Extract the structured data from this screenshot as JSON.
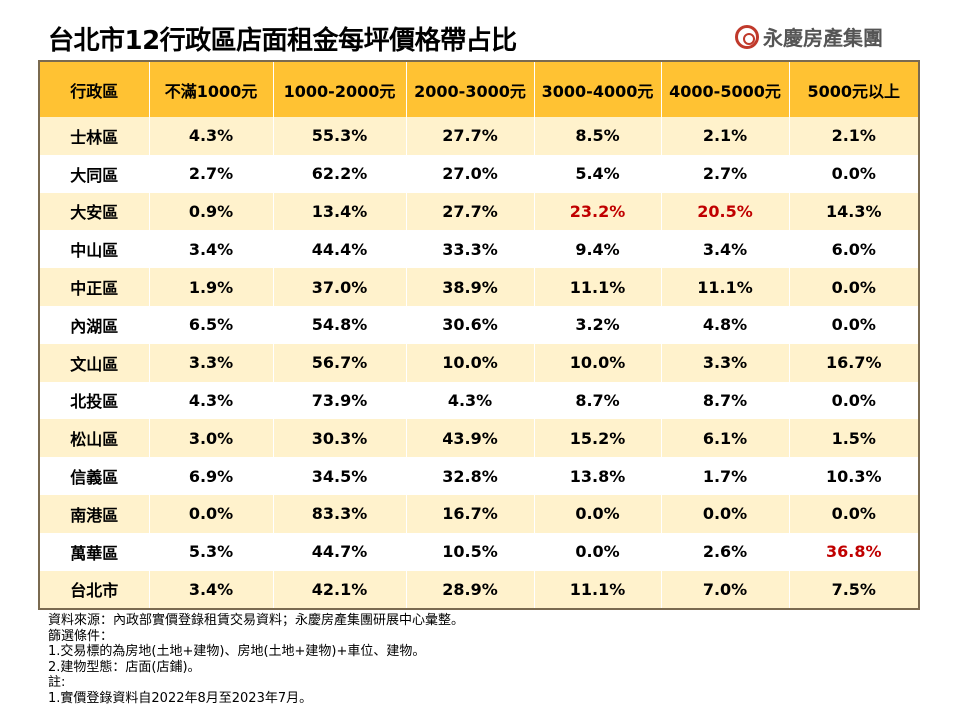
{
  "title": "台北市12行政區店面租金每坪價格帶占比",
  "logo": {
    "text": "永慶房產集團",
    "color": "#c0392b"
  },
  "table": {
    "headers": [
      "行政區",
      "不滿1000元",
      "1000-2000元",
      "2000-3000元",
      "3000-4000元",
      "4000-5000元",
      "5000元以上"
    ],
    "header_color": "#ffc233",
    "stripe_color": "#fff2cc",
    "highlight_color": "#c00000",
    "rows": [
      {
        "district": "士林區",
        "values": [
          "4.3%",
          "55.3%",
          "27.7%",
          "8.5%",
          "2.1%",
          "2.1%"
        ],
        "highlight": []
      },
      {
        "district": "大同區",
        "values": [
          "2.7%",
          "62.2%",
          "27.0%",
          "5.4%",
          "2.7%",
          "0.0%"
        ],
        "highlight": []
      },
      {
        "district": "大安區",
        "values": [
          "0.9%",
          "13.4%",
          "27.7%",
          "23.2%",
          "20.5%",
          "14.3%"
        ],
        "highlight": [
          3,
          4
        ]
      },
      {
        "district": "中山區",
        "values": [
          "3.4%",
          "44.4%",
          "33.3%",
          "9.4%",
          "3.4%",
          "6.0%"
        ],
        "highlight": []
      },
      {
        "district": "中正區",
        "values": [
          "1.9%",
          "37.0%",
          "38.9%",
          "11.1%",
          "11.1%",
          "0.0%"
        ],
        "highlight": []
      },
      {
        "district": "內湖區",
        "values": [
          "6.5%",
          "54.8%",
          "30.6%",
          "3.2%",
          "4.8%",
          "0.0%"
        ],
        "highlight": []
      },
      {
        "district": "文山區",
        "values": [
          "3.3%",
          "56.7%",
          "10.0%",
          "10.0%",
          "3.3%",
          "16.7%"
        ],
        "highlight": []
      },
      {
        "district": "北投區",
        "values": [
          "4.3%",
          "73.9%",
          "4.3%",
          "8.7%",
          "8.7%",
          "0.0%"
        ],
        "highlight": []
      },
      {
        "district": "松山區",
        "values": [
          "3.0%",
          "30.3%",
          "43.9%",
          "15.2%",
          "6.1%",
          "1.5%"
        ],
        "highlight": []
      },
      {
        "district": "信義區",
        "values": [
          "6.9%",
          "34.5%",
          "32.8%",
          "13.8%",
          "1.7%",
          "10.3%"
        ],
        "highlight": []
      },
      {
        "district": "南港區",
        "values": [
          "0.0%",
          "83.3%",
          "16.7%",
          "0.0%",
          "0.0%",
          "0.0%"
        ],
        "highlight": []
      },
      {
        "district": "萬華區",
        "values": [
          "5.3%",
          "44.7%",
          "10.5%",
          "0.0%",
          "2.6%",
          "36.8%"
        ],
        "highlight": [
          5
        ]
      },
      {
        "district": "台北市",
        "values": [
          "3.4%",
          "42.1%",
          "28.9%",
          "11.1%",
          "7.0%",
          "7.5%"
        ],
        "highlight": []
      }
    ]
  },
  "notes": [
    "資料來源：內政部實價登錄租賃交易資料；永慶房產集團研展中心彙整。",
    "篩選條件：",
    "1.交易標的為房地(土地+建物)、房地(土地+建物)+車位、建物。",
    "2.建物型態：店面(店鋪)。",
    "註:",
    "1.實價登錄資料自2022年8月至2023年7月。"
  ]
}
